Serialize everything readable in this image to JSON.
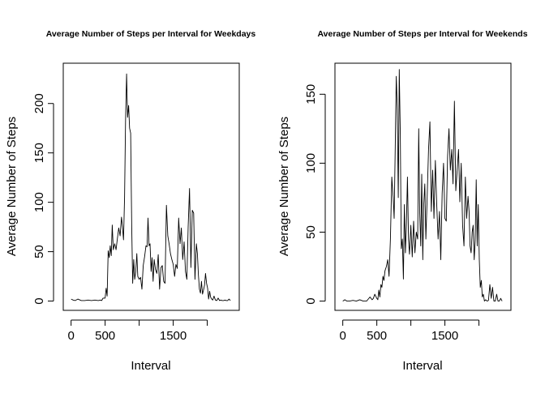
{
  "chart_data": [
    {
      "type": "line",
      "title": "Average Number of Steps per Interval for Weekdays",
      "xlabel": "Interval",
      "ylabel": "Average Number of Steps",
      "xlim": [
        -115,
        2470
      ],
      "ylim": [
        -9.4,
        240.8
      ],
      "xticks": [
        0,
        500,
        1500
      ],
      "xtick_labels": [
        "0",
        "500",
        "1500"
      ],
      "yticks": [
        0,
        50,
        100,
        150,
        200
      ],
      "ytick_labels": [
        "0",
        "50",
        "100",
        "150",
        "200"
      ],
      "grid": false,
      "series": [
        {
          "x": [
            0,
            30,
            60,
            100,
            150,
            200,
            250,
            300,
            350,
            400,
            430,
            450,
            470,
            500,
            515,
            530,
            545,
            560,
            575,
            590,
            605,
            620,
            640,
            660,
            680,
            700,
            720,
            740,
            755,
            770,
            785,
            800,
            815,
            830,
            845,
            860,
            875,
            890,
            905,
            920,
            935,
            950,
            965,
            980,
            1000,
            1020,
            1040,
            1060,
            1080,
            1100,
            1115,
            1130,
            1145,
            1160,
            1175,
            1190,
            1205,
            1220,
            1240,
            1260,
            1280,
            1300,
            1320,
            1340,
            1360,
            1380,
            1400,
            1420,
            1440,
            1460,
            1480,
            1500,
            1520,
            1540,
            1560,
            1580,
            1600,
            1620,
            1640,
            1660,
            1680,
            1700,
            1720,
            1740,
            1760,
            1780,
            1800,
            1820,
            1840,
            1855,
            1870,
            1885,
            1900,
            1915,
            1930,
            1945,
            1960,
            1975,
            1990,
            2005,
            2020,
            2035,
            2050,
            2065,
            2080,
            2100,
            2120,
            2140,
            2160,
            2180,
            2200,
            2220,
            2240,
            2260,
            2280,
            2300,
            2320,
            2340
          ],
          "values": [
            2,
            1,
            0.5,
            2,
            0.5,
            0.5,
            1,
            0.5,
            1,
            0.5,
            1,
            0.5,
            3,
            3,
            13,
            5,
            51,
            44,
            56,
            46,
            77,
            52,
            58,
            52,
            63,
            74,
            66,
            85,
            75,
            62,
            105,
            182,
            230,
            186,
            198,
            175,
            170,
            76,
            18,
            42,
            22,
            30,
            48,
            25,
            22,
            24,
            12,
            36,
            45,
            56,
            55,
            84,
            56,
            58,
            30,
            44,
            20,
            42,
            32,
            28,
            47,
            12,
            34,
            36,
            20,
            18,
            97,
            66,
            58,
            48,
            42,
            37,
            25,
            37,
            33,
            84,
            58,
            74,
            42,
            60,
            30,
            22,
            75,
            114,
            34,
            92,
            89,
            22,
            58,
            48,
            27,
            12,
            8,
            20,
            7,
            11,
            16,
            28,
            18,
            13,
            2,
            10,
            4,
            2,
            1,
            5,
            1,
            0.5,
            3,
            0.5,
            1,
            0.5,
            0.5,
            1,
            0.5,
            0.5,
            2,
            0.5
          ]
        }
      ]
    },
    {
      "type": "line",
      "title": "Average Number of Steps per Interval for Weekends",
      "xlabel": "Interval",
      "ylabel": "Average Number of Steps",
      "xlim": [
        -115,
        2470
      ],
      "ylim": [
        -6.7,
        172.5
      ],
      "xticks": [
        0,
        500,
        1500
      ],
      "xtick_labels": [
        "0",
        "500",
        "1500"
      ],
      "yticks": [
        0,
        50,
        100,
        150
      ],
      "ytick_labels": [
        "0",
        "50",
        "100",
        "150"
      ],
      "grid": false,
      "series": [
        {
          "x": [
            0,
            30,
            60,
            100,
            150,
            200,
            250,
            300,
            350,
            400,
            430,
            450,
            470,
            500,
            515,
            530,
            545,
            560,
            575,
            590,
            605,
            620,
            640,
            660,
            680,
            700,
            720,
            740,
            755,
            770,
            785,
            800,
            815,
            830,
            845,
            860,
            875,
            890,
            905,
            920,
            935,
            950,
            965,
            980,
            1000,
            1020,
            1040,
            1060,
            1080,
            1100,
            1115,
            1130,
            1145,
            1160,
            1175,
            1190,
            1205,
            1220,
            1240,
            1260,
            1280,
            1300,
            1320,
            1340,
            1360,
            1380,
            1400,
            1420,
            1440,
            1460,
            1480,
            1500,
            1520,
            1540,
            1560,
            1580,
            1600,
            1620,
            1640,
            1660,
            1680,
            1700,
            1720,
            1740,
            1760,
            1780,
            1800,
            1820,
            1840,
            1855,
            1870,
            1885,
            1900,
            1915,
            1930,
            1945,
            1960,
            1975,
            1990,
            2005,
            2020,
            2035,
            2050,
            2065,
            2080,
            2100,
            2120,
            2140,
            2160,
            2180,
            2200,
            2220,
            2240,
            2260,
            2280,
            2300,
            2320,
            2340
          ],
          "values": [
            0,
            1,
            0,
            0,
            0.5,
            0,
            1,
            0,
            0,
            3,
            1,
            2,
            5,
            2,
            1,
            8,
            3,
            12,
            10,
            18,
            15,
            22,
            25,
            30,
            18,
            45,
            90,
            75,
            60,
            110,
            163,
            140,
            75,
            168,
            120,
            38,
            45,
            16,
            70,
            35,
            55,
            90,
            45,
            34,
            55,
            32,
            58,
            35,
            50,
            45,
            125,
            65,
            40,
            92,
            30,
            70,
            85,
            45,
            75,
            110,
            130,
            65,
            95,
            60,
            102,
            70,
            45,
            65,
            30,
            78,
            100,
            60,
            58,
            105,
            125,
            95,
            110,
            85,
            145,
            80,
            95,
            110,
            72,
            100,
            55,
            40,
            90,
            60,
            76,
            65,
            40,
            35,
            50,
            55,
            30,
            44,
            88,
            40,
            70,
            30,
            10,
            15,
            3,
            5,
            0,
            1,
            0,
            0.5,
            12,
            2,
            10,
            0,
            0,
            5,
            0,
            0,
            2,
            0
          ]
        }
      ]
    }
  ]
}
